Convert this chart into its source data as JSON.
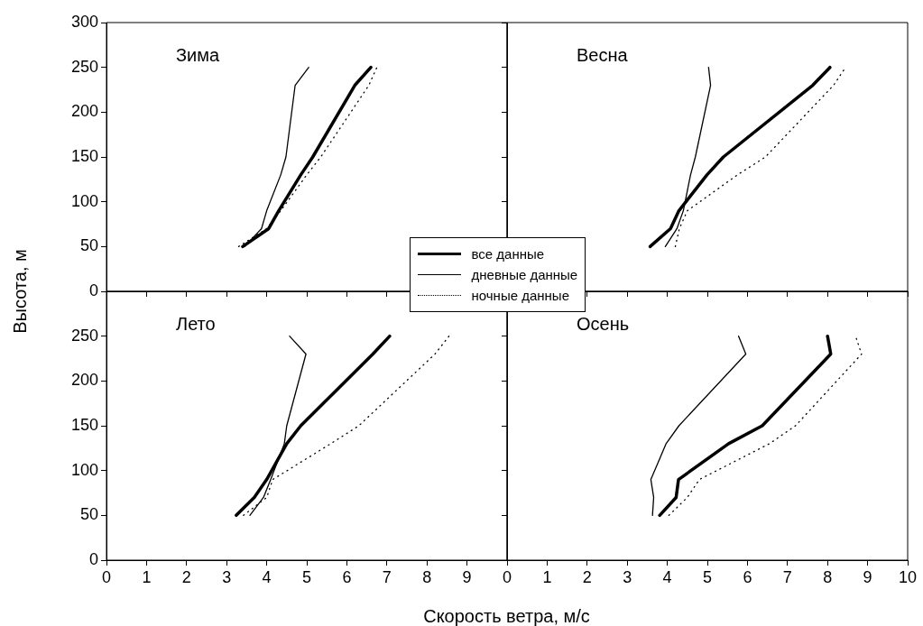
{
  "chart_data": [
    {
      "type": "line",
      "title": "Зима",
      "ylabel": "Высота, м",
      "legend": "bottom right",
      "tick_labels": "y",
      "xlim": [
        0,
        10
      ],
      "xticks": [
        0,
        1,
        2,
        3,
        4,
        5,
        6,
        7,
        8,
        9
      ],
      "ylim": [
        0,
        300
      ],
      "yticks": [
        0,
        50,
        100,
        150,
        200,
        250,
        300
      ],
      "series": [
        {
          "name": "все данные",
          "color": "#000000",
          "line_style": "solid",
          "x": [
            3.4,
            4.05,
            4.3,
            4.85,
            5.15,
            6.2,
            6.6
          ],
          "values": [
            50,
            70,
            90,
            130,
            150,
            230,
            250
          ]
        },
        {
          "name": "дневные данные",
          "color": "#000000",
          "line_style": "solid",
          "x": [
            3.45,
            3.87,
            4.0,
            4.35,
            4.48,
            4.71,
            5.05
          ],
          "values": [
            50,
            70,
            90,
            130,
            150,
            230,
            250
          ]
        },
        {
          "name": "ночные данные",
          "color": "#000000",
          "line_style": "dotted",
          "x": [
            3.3,
            4.0,
            4.35,
            5.0,
            5.35,
            6.55,
            6.75
          ],
          "values": [
            50,
            70,
            90,
            130,
            150,
            230,
            250
          ]
        }
      ]
    },
    {
      "type": "line",
      "title": "Весна",
      "tick_labels": false,
      "xlim": [
        0,
        10
      ],
      "xticks": [
        0,
        1,
        2,
        3,
        4,
        5,
        6,
        7,
        8,
        9,
        10
      ],
      "ylim": [
        0,
        300
      ],
      "yticks": [
        0,
        50,
        100,
        150,
        200,
        250,
        300
      ],
      "series": [
        {
          "color": "#000000",
          "line_style": "solid",
          "x": [
            3.57,
            4.08,
            4.29,
            4.99,
            5.4,
            7.63,
            8.06
          ],
          "values": [
            50,
            70,
            90,
            130,
            150,
            230,
            250
          ]
        },
        {
          "color": "#000000",
          "line_style": "solid",
          "x": [
            3.95,
            4.24,
            4.4,
            4.58,
            4.7,
            5.08,
            5.03
          ],
          "values": [
            50,
            70,
            90,
            130,
            150,
            230,
            250
          ]
        },
        {
          "color": "#000000",
          "line_style": "dotted",
          "x": [
            4.2,
            4.3,
            4.5,
            5.75,
            6.45,
            8.15,
            8.45
          ],
          "values": [
            50,
            70,
            90,
            130,
            150,
            230,
            250
          ]
        }
      ]
    },
    {
      "type": "line",
      "title": "Лето",
      "xlabel": "Скорость ветра, м/с",
      "xlim": [
        0,
        10
      ],
      "xticks": [
        0,
        1,
        2,
        3,
        4,
        5,
        6,
        7,
        8,
        9
      ],
      "ylim": [
        0,
        300
      ],
      "yticks": [
        0,
        50,
        100,
        150,
        200,
        250
      ],
      "series": [
        {
          "color": "#000000",
          "line_style": "solid",
          "x": [
            3.24,
            3.69,
            4.0,
            4.5,
            4.85,
            6.65,
            7.07
          ],
          "values": [
            50,
            70,
            90,
            130,
            150,
            230,
            250
          ]
        },
        {
          "color": "#000000",
          "line_style": "solid",
          "x": [
            3.58,
            3.92,
            4.1,
            4.44,
            4.5,
            4.98,
            4.57
          ],
          "values": [
            50,
            70,
            90,
            130,
            150,
            230,
            250
          ]
        },
        {
          "color": "#000000",
          "line_style": "dotted",
          "x": [
            3.42,
            4.0,
            4.15,
            5.6,
            6.3,
            8.2,
            8.55
          ],
          "values": [
            50,
            70,
            90,
            130,
            150,
            230,
            250
          ]
        }
      ]
    },
    {
      "type": "line",
      "title": "Осень",
      "tick_labels": "x",
      "xlim": [
        0,
        10
      ],
      "xticks": [
        0,
        1,
        2,
        3,
        4,
        5,
        6,
        7,
        8,
        9,
        10
      ],
      "ylim": [
        0,
        300
      ],
      "yticks": [
        0,
        50,
        100,
        150,
        200,
        250
      ],
      "series": [
        {
          "color": "#000000",
          "line_style": "solid",
          "x": [
            3.81,
            4.22,
            4.28,
            5.53,
            6.37,
            8.08,
            8.0
          ],
          "values": [
            50,
            70,
            90,
            130,
            150,
            230,
            250
          ]
        },
        {
          "color": "#000000",
          "line_style": "solid",
          "x": [
            3.63,
            3.66,
            3.59,
            3.97,
            4.29,
            5.96,
            5.78
          ],
          "values": [
            50,
            70,
            90,
            130,
            150,
            230,
            250
          ]
        },
        {
          "color": "#000000",
          "line_style": "dotted",
          "x": [
            4.04,
            4.5,
            4.8,
            6.55,
            7.2,
            8.85,
            8.7
          ],
          "values": [
            50,
            70,
            90,
            130,
            150,
            230,
            250
          ]
        }
      ]
    }
  ]
}
